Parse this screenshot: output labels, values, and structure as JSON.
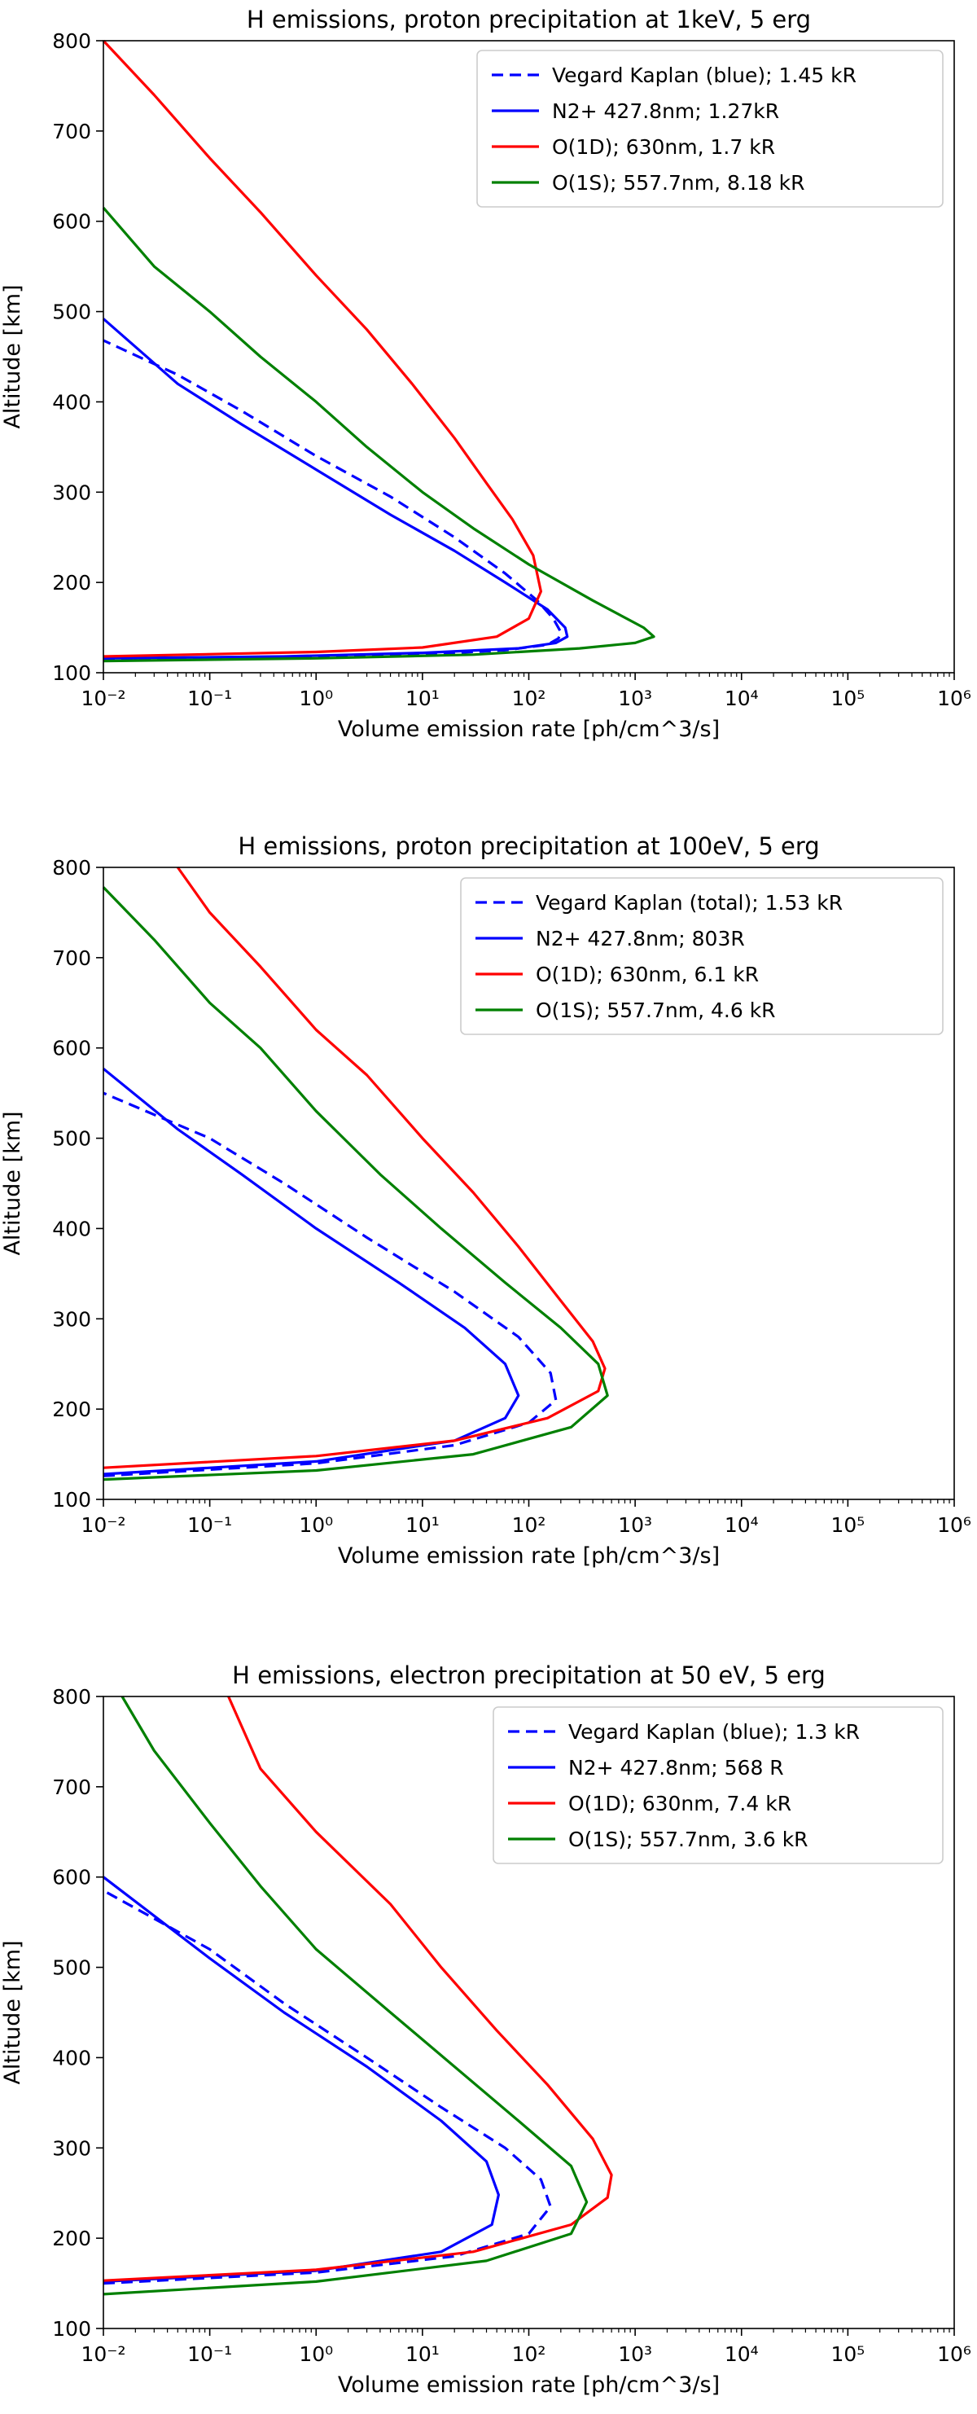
{
  "chart_data": [
    {
      "type": "line",
      "title": "H emissions, proton precipitation at 1keV, 5 erg",
      "xlabel": "Volume emission rate [ph/cm^3/s]",
      "ylabel": "Altitude [km]",
      "xscale": "log",
      "xlim": [
        0.01,
        1000000
      ],
      "ylim": [
        100,
        800
      ],
      "x_ticks": [
        "10⁻²",
        "10⁻¹",
        "10⁰",
        "10¹",
        "10²",
        "10³",
        "10⁴",
        "10⁵",
        "10⁶"
      ],
      "y_ticks": [
        "100",
        "200",
        "300",
        "400",
        "500",
        "600",
        "700",
        "800"
      ],
      "grid": false,
      "legend_position": "top-right",
      "series": [
        {
          "name": "Vegard Kaplan (blue); 1.45 kR",
          "color": "#0000ff",
          "dash": "dashed",
          "points": [
            [
              0.01,
              114
            ],
            [
              0.5,
              116
            ],
            [
              10,
              120
            ],
            [
              60,
              125
            ],
            [
              150,
              131
            ],
            [
              190,
              138
            ],
            [
              200,
              145
            ],
            [
              170,
              160
            ],
            [
              120,
              180
            ],
            [
              60,
              210
            ],
            [
              20,
              250
            ],
            [
              5,
              295
            ],
            [
              1,
              340
            ],
            [
              0.2,
              390
            ],
            [
              0.05,
              430
            ],
            [
              0.01,
              468
            ]
          ]
        },
        {
          "name": "N2+ 427.8nm; 1.27kR",
          "color": "#0000ff",
          "dash": "solid",
          "points": [
            [
              0.01,
              116
            ],
            [
              0.5,
              118
            ],
            [
              10,
              122
            ],
            [
              80,
              127
            ],
            [
              180,
              133
            ],
            [
              230,
              140
            ],
            [
              220,
              150
            ],
            [
              150,
              170
            ],
            [
              60,
              200
            ],
            [
              20,
              235
            ],
            [
              5,
              275
            ],
            [
              1,
              325
            ],
            [
              0.2,
              375
            ],
            [
              0.05,
              420
            ],
            [
              0.01,
              492
            ]
          ]
        },
        {
          "name": "O(1D); 630nm, 1.7 kR",
          "color": "#ff0000",
          "dash": "solid",
          "points": [
            [
              0.01,
              118
            ],
            [
              1,
              123
            ],
            [
              10,
              128
            ],
            [
              50,
              140
            ],
            [
              100,
              160
            ],
            [
              130,
              190
            ],
            [
              110,
              230
            ],
            [
              70,
              270
            ],
            [
              40,
              310
            ],
            [
              20,
              360
            ],
            [
              8,
              420
            ],
            [
              3,
              480
            ],
            [
              1,
              540
            ],
            [
              0.3,
              610
            ],
            [
              0.1,
              670
            ],
            [
              0.03,
              740
            ],
            [
              0.01,
              800
            ]
          ]
        },
        {
          "name": "O(1S); 557.7nm, 8.18 kR",
          "color": "#008000",
          "dash": "solid",
          "points": [
            [
              0.01,
              113
            ],
            [
              1,
              116
            ],
            [
              30,
              120
            ],
            [
              300,
              127
            ],
            [
              1000,
              133
            ],
            [
              1500,
              140
            ],
            [
              1200,
              150
            ],
            [
              400,
              180
            ],
            [
              100,
              220
            ],
            [
              30,
              260
            ],
            [
              10,
              300
            ],
            [
              3,
              350
            ],
            [
              1,
              400
            ],
            [
              0.3,
              450
            ],
            [
              0.1,
              500
            ],
            [
              0.03,
              550
            ],
            [
              0.01,
              615
            ]
          ]
        }
      ]
    },
    {
      "type": "line",
      "title": "H emissions, proton precipitation at 100eV, 5 erg",
      "xlabel": "Volume emission rate [ph/cm^3/s]",
      "ylabel": "Altitude [km]",
      "xscale": "log",
      "xlim": [
        0.01,
        1000000
      ],
      "ylim": [
        100,
        800
      ],
      "x_ticks": [
        "10⁻²",
        "10⁻¹",
        "10⁰",
        "10¹",
        "10²",
        "10³",
        "10⁴",
        "10⁵",
        "10⁶"
      ],
      "y_ticks": [
        "100",
        "200",
        "300",
        "400",
        "500",
        "600",
        "700",
        "800"
      ],
      "grid": false,
      "legend_position": "top-right",
      "series": [
        {
          "name": "Vegard Kaplan (total); 1.53 kR",
          "color": "#0000ff",
          "dash": "dashed",
          "points": [
            [
              0.01,
              126
            ],
            [
              1,
              140
            ],
            [
              20,
              160
            ],
            [
              100,
              185
            ],
            [
              180,
              210
            ],
            [
              160,
              240
            ],
            [
              80,
              280
            ],
            [
              20,
              330
            ],
            [
              3,
              390
            ],
            [
              0.5,
              450
            ],
            [
              0.1,
              500
            ],
            [
              0.01,
              550
            ]
          ]
        },
        {
          "name": "N2+ 427.8nm; 803R",
          "color": "#0000ff",
          "dash": "solid",
          "points": [
            [
              0.01,
              128
            ],
            [
              1,
              142
            ],
            [
              20,
              165
            ],
            [
              60,
              190
            ],
            [
              80,
              215
            ],
            [
              60,
              250
            ],
            [
              25,
              290
            ],
            [
              6,
              340
            ],
            [
              1,
              400
            ],
            [
              0.2,
              460
            ],
            [
              0.05,
              510
            ],
            [
              0.01,
              577
            ]
          ]
        },
        {
          "name": "O(1D); 630nm, 6.1 kR",
          "color": "#ff0000",
          "dash": "solid",
          "points": [
            [
              0.01,
              135
            ],
            [
              1,
              148
            ],
            [
              20,
              165
            ],
            [
              150,
              190
            ],
            [
              450,
              220
            ],
            [
              520,
              245
            ],
            [
              400,
              275
            ],
            [
              200,
              320
            ],
            [
              80,
              380
            ],
            [
              30,
              440
            ],
            [
              10,
              500
            ],
            [
              3,
              570
            ],
            [
              1,
              620
            ],
            [
              0.3,
              690
            ],
            [
              0.1,
              750
            ],
            [
              0.05,
              800
            ]
          ]
        },
        {
          "name": "O(1S); 557.7nm, 4.6 kR",
          "color": "#008000",
          "dash": "solid",
          "points": [
            [
              0.01,
              122
            ],
            [
              1,
              132
            ],
            [
              30,
              150
            ],
            [
              250,
              180
            ],
            [
              550,
              215
            ],
            [
              450,
              250
            ],
            [
              200,
              290
            ],
            [
              60,
              340
            ],
            [
              15,
              400
            ],
            [
              4,
              460
            ],
            [
              1,
              530
            ],
            [
              0.3,
              600
            ],
            [
              0.1,
              650
            ],
            [
              0.03,
              720
            ],
            [
              0.01,
              778
            ]
          ]
        }
      ]
    },
    {
      "type": "line",
      "title": "H emissions, electron precipitation at 50 eV, 5 erg",
      "xlabel": "Volume emission rate [ph/cm^3/s]",
      "ylabel": "Altitude [km]",
      "xscale": "log",
      "xlim": [
        0.01,
        1000000
      ],
      "ylim": [
        100,
        800
      ],
      "x_ticks": [
        "10⁻²",
        "10⁻¹",
        "10⁰",
        "10¹",
        "10²",
        "10³",
        "10⁴",
        "10⁵",
        "10⁶"
      ],
      "y_ticks": [
        "100",
        "200",
        "300",
        "400",
        "500",
        "600",
        "700",
        "800"
      ],
      "grid": false,
      "legend_position": "top-right",
      "series": [
        {
          "name": "Vegard Kaplan (blue); 1.3 kR",
          "color": "#0000ff",
          "dash": "dashed",
          "points": [
            [
              0.01,
              150
            ],
            [
              1,
              162
            ],
            [
              20,
              180
            ],
            [
              100,
              205
            ],
            [
              160,
              235
            ],
            [
              130,
              265
            ],
            [
              60,
              300
            ],
            [
              15,
              345
            ],
            [
              3,
              400
            ],
            [
              0.5,
              460
            ],
            [
              0.1,
              520
            ],
            [
              0.01,
              585
            ]
          ]
        },
        {
          "name": "N2+ 427.8nm; 568 R",
          "color": "#0000ff",
          "dash": "solid",
          "points": [
            [
              0.01,
              152
            ],
            [
              1,
              164
            ],
            [
              15,
              185
            ],
            [
              45,
              215
            ],
            [
              52,
              248
            ],
            [
              40,
              285
            ],
            [
              15,
              330
            ],
            [
              3,
              390
            ],
            [
              0.5,
              450
            ],
            [
              0.1,
              510
            ],
            [
              0.01,
              600
            ]
          ]
        },
        {
          "name": "O(1D); 630nm, 7.4 kR",
          "color": "#ff0000",
          "dash": "solid",
          "points": [
            [
              0.01,
              153
            ],
            [
              1,
              165
            ],
            [
              30,
              185
            ],
            [
              250,
              215
            ],
            [
              550,
              245
            ],
            [
              600,
              270
            ],
            [
              400,
              310
            ],
            [
              150,
              370
            ],
            [
              50,
              430
            ],
            [
              15,
              500
            ],
            [
              5,
              570
            ],
            [
              1,
              650
            ],
            [
              0.3,
              720
            ],
            [
              0.15,
              800
            ]
          ]
        },
        {
          "name": "O(1S); 557.7nm, 3.6 kR",
          "color": "#008000",
          "dash": "solid",
          "points": [
            [
              0.01,
              138
            ],
            [
              1,
              152
            ],
            [
              40,
              175
            ],
            [
              250,
              205
            ],
            [
              350,
              240
            ],
            [
              250,
              280
            ],
            [
              80,
              330
            ],
            [
              20,
              390
            ],
            [
              5,
              450
            ],
            [
              1,
              520
            ],
            [
              0.3,
              590
            ],
            [
              0.1,
              660
            ],
            [
              0.03,
              740
            ],
            [
              0.015,
              800
            ]
          ]
        }
      ]
    }
  ]
}
